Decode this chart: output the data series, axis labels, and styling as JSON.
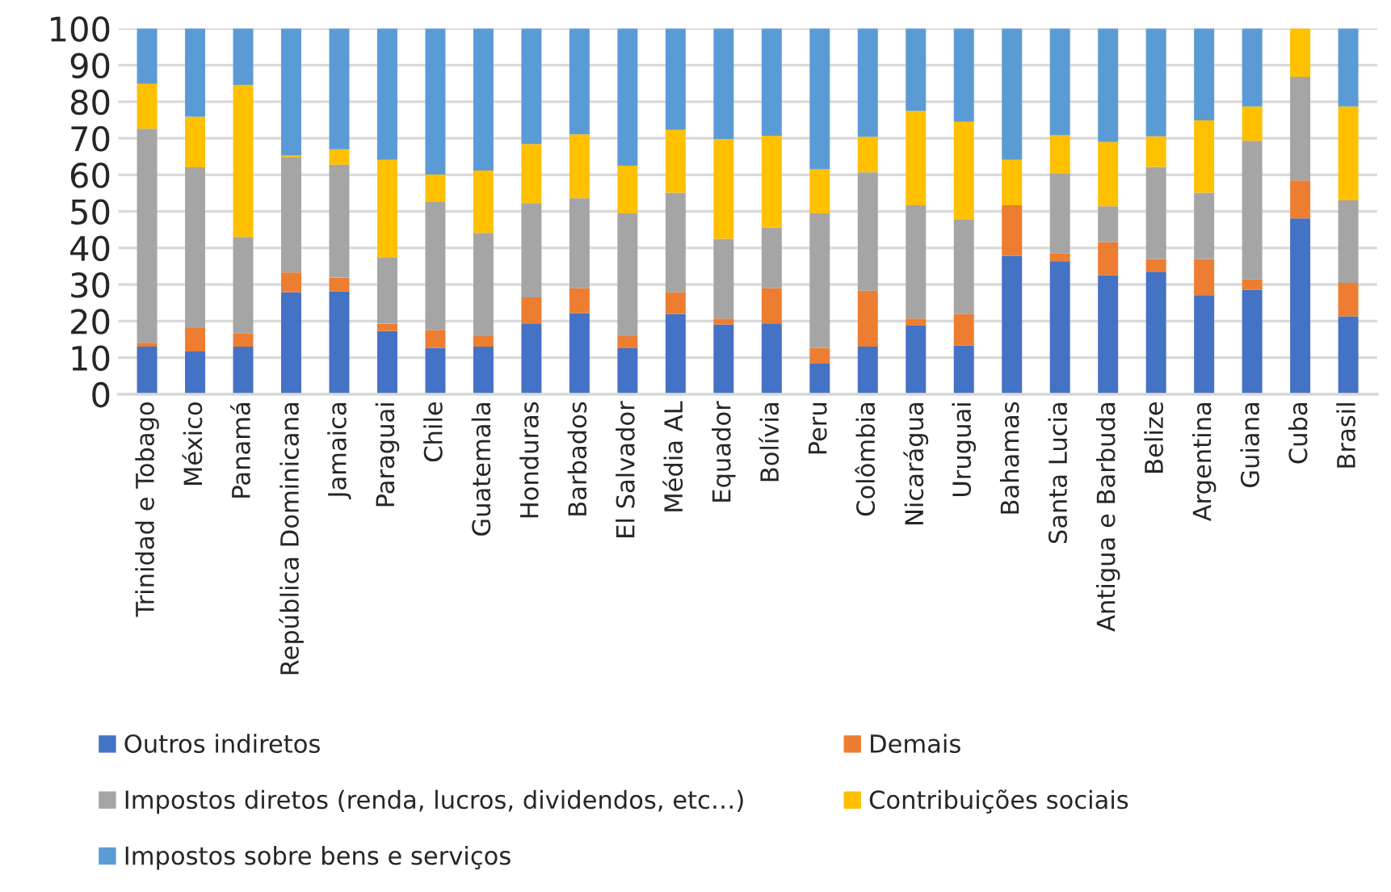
{
  "chart_data": {
    "type": "bar",
    "stacked": true,
    "categories": [
      "Trinidad e Tobago",
      "México",
      "Panamá",
      "República Dominicana",
      "Jamaica",
      "Paraguai",
      "Chile",
      "Guatemala",
      "Honduras",
      "Barbados",
      "El Salvador",
      "Média AL",
      "Equador",
      "Bolívia",
      "Peru",
      "Colômbia",
      "Nicarágua",
      "Uruguai",
      "Bahamas",
      "Santa Lucia",
      "Antigua e Barbuda",
      "Belize",
      "Argentina",
      "Guiana",
      "Cuba",
      "Brasil"
    ],
    "series": [
      {
        "name": "Outros indiretos",
        "color": "#4472c4",
        "values": [
          13.0,
          11.7,
          13.0,
          27.9,
          28.1,
          17.3,
          12.7,
          13.0,
          19.4,
          22.2,
          12.6,
          22.0,
          19.1,
          19.4,
          8.4,
          13.0,
          18.8,
          13.3,
          37.9,
          36.4,
          32.6,
          33.5,
          27.1,
          28.6,
          48.1,
          21.3
        ]
      },
      {
        "name": "Demais",
        "color": "#ed7d31",
        "values": [
          1.1,
          6.4,
          3.7,
          5.4,
          3.8,
          2.0,
          4.9,
          2.9,
          7.1,
          6.8,
          3.3,
          5.9,
          1.6,
          9.6,
          4.3,
          15.3,
          1.9,
          8.6,
          13.8,
          2.1,
          9.0,
          3.5,
          9.9,
          2.8,
          10.4,
          9.2
        ]
      },
      {
        "name": "Impostos diretos (renda, lucros, dividendos, etc…)",
        "color": "#a5a5a5",
        "values": [
          58.5,
          44.0,
          26.3,
          31.6,
          30.9,
          18.2,
          35.0,
          28.2,
          25.8,
          24.6,
          33.6,
          27.2,
          21.8,
          16.6,
          36.8,
          32.4,
          31.0,
          26.0,
          0,
          21.8,
          9.8,
          25.2,
          18.1,
          37.9,
          28.3,
          22.5
        ]
      },
      {
        "name": "Contribuições sociais",
        "color": "#ffc000",
        "values": [
          12.3,
          13.8,
          41.6,
          0.4,
          4.2,
          26.6,
          7.5,
          17.1,
          16.1,
          17.5,
          13.0,
          17.2,
          27.3,
          25.1,
          12.0,
          9.7,
          25.8,
          26.6,
          12.4,
          10.5,
          17.6,
          8.3,
          19.8,
          9.4,
          13.2,
          25.7
        ]
      },
      {
        "name": "Impostos sobre bens e serviços",
        "color": "#5b9bd5",
        "values": [
          15.1,
          24.1,
          15.4,
          34.7,
          33.0,
          35.9,
          39.9,
          38.8,
          31.6,
          28.9,
          37.5,
          27.7,
          30.2,
          29.3,
          38.5,
          29.6,
          22.5,
          25.5,
          35.9,
          29.2,
          31.0,
          29.5,
          25.1,
          21.3,
          0,
          21.3
        ]
      }
    ],
    "ylim": [
      0,
      100
    ],
    "yticks": [
      0,
      10,
      20,
      30,
      40,
      50,
      60,
      70,
      80,
      90,
      100
    ],
    "grid": "y",
    "legend": "bottom"
  }
}
